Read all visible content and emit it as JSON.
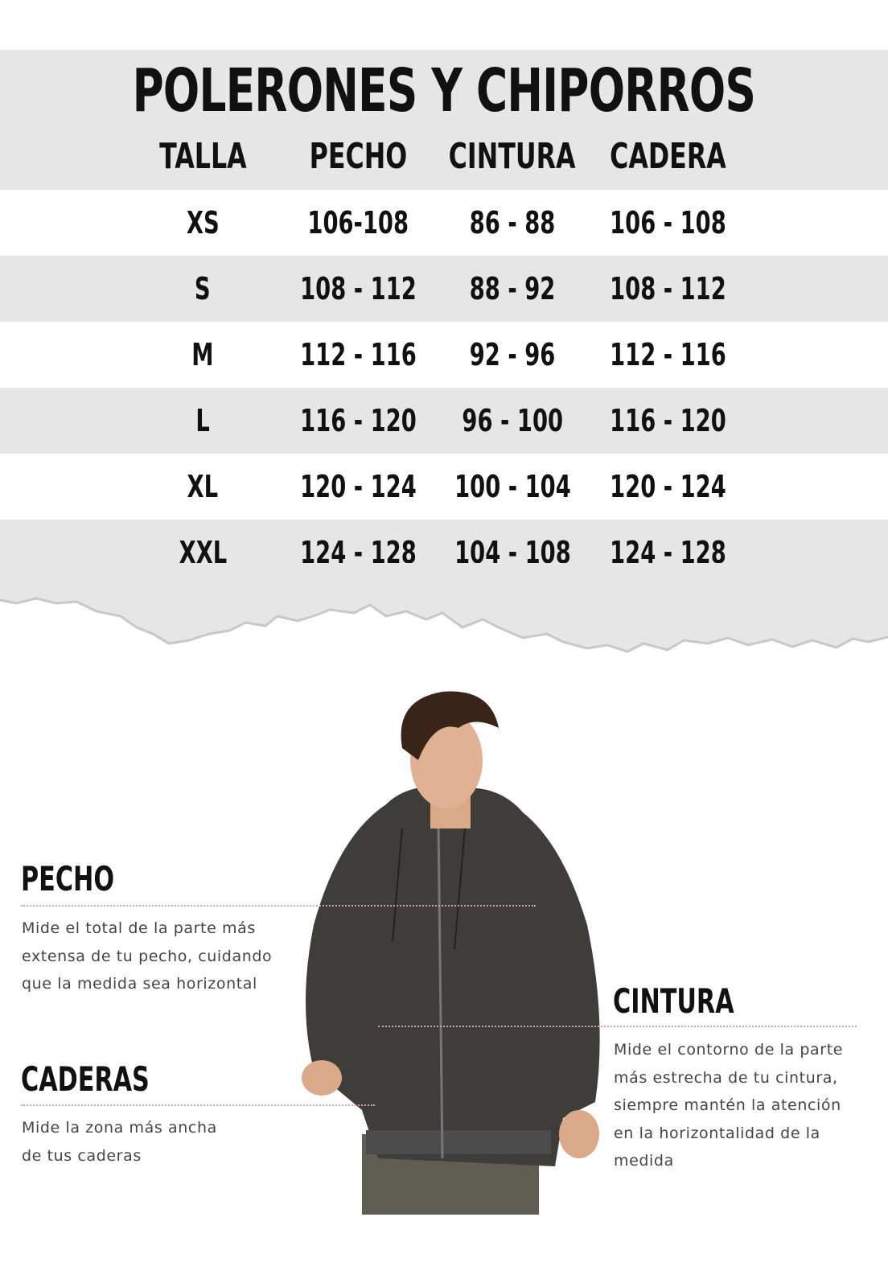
{
  "title": "POLERONES Y CHIPORROS",
  "table": {
    "headers": [
      "TALLA",
      "PECHO",
      "CINTURA",
      "CADERA"
    ],
    "rows": [
      [
        "XS",
        "106-108",
        "86 - 88",
        "106 - 108"
      ],
      [
        "S",
        "108 - 112",
        "88 - 92",
        "108 - 112"
      ],
      [
        "M",
        "112 - 116",
        "92 - 96",
        "112 - 116"
      ],
      [
        "L",
        "116 - 120",
        "96 - 100",
        "116 - 120"
      ],
      [
        "XL",
        "120 - 124",
        "100 - 104",
        "120 - 124"
      ],
      [
        "XXL",
        "124 - 128",
        "104 - 108",
        "124 - 128"
      ]
    ]
  },
  "guide": {
    "pecho": {
      "heading": "PECHO",
      "lines": [
        "Mide el total de la parte más",
        "extensa de tu pecho, cuidando",
        "que la medida sea horizontal"
      ]
    },
    "caderas": {
      "heading": "CADERAS",
      "lines": [
        "Mide la zona más ancha",
        "de tus caderas"
      ]
    },
    "cintura": {
      "heading": "CINTURA",
      "lines": [
        "Mide el contorno de la parte",
        "más estrecha de tu cintura,",
        "siempre mantén la atención",
        "en  la horizontalidad de la",
        "medida"
      ]
    }
  },
  "colors": {
    "band": "#e6e6e6",
    "white": "#ffffff",
    "dotted_line": "#d9a3a3",
    "hoodie": "#3e3d3a"
  }
}
